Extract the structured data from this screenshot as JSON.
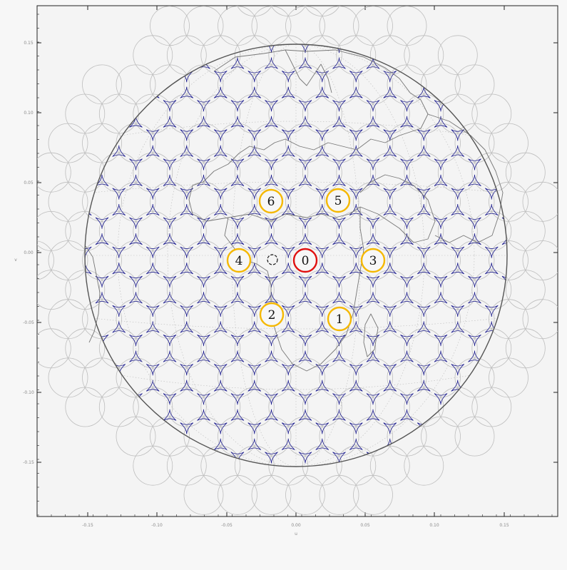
{
  "figure": {
    "colors": {
      "background": "#f7f7f7",
      "plot_bg": "#f4f4f4",
      "frame": "#222222",
      "earth_limb": "#555555",
      "coastline": "#777777",
      "graticule": "#bbbbbb",
      "beam_outline": "#bdbdbd",
      "beam_interstice": "#1a1a8c",
      "highlight_ring": "#f5b800",
      "central_ring": "#e01010"
    },
    "x_tick_labels": [
      "-0.15",
      "-0.10",
      "-0.05",
      "0.00",
      "0.05",
      "0.10",
      "0.15"
    ],
    "y_tick_labels": [
      "0.15",
      "0.10",
      "0.05",
      "0.00",
      "-0.05",
      "-0.10",
      "-0.15"
    ],
    "x_axis_unit": "u",
    "y_axis_unit": "v",
    "highlighted_beams": [
      {
        "label": "0",
        "ring": "central"
      },
      {
        "label": "1",
        "ring": "neighbor"
      },
      {
        "label": "2",
        "ring": "neighbor"
      },
      {
        "label": "3",
        "ring": "neighbor"
      },
      {
        "label": "4",
        "ring": "neighbor"
      },
      {
        "label": "5",
        "ring": "neighbor"
      },
      {
        "label": "6",
        "ring": "neighbor"
      }
    ]
  }
}
